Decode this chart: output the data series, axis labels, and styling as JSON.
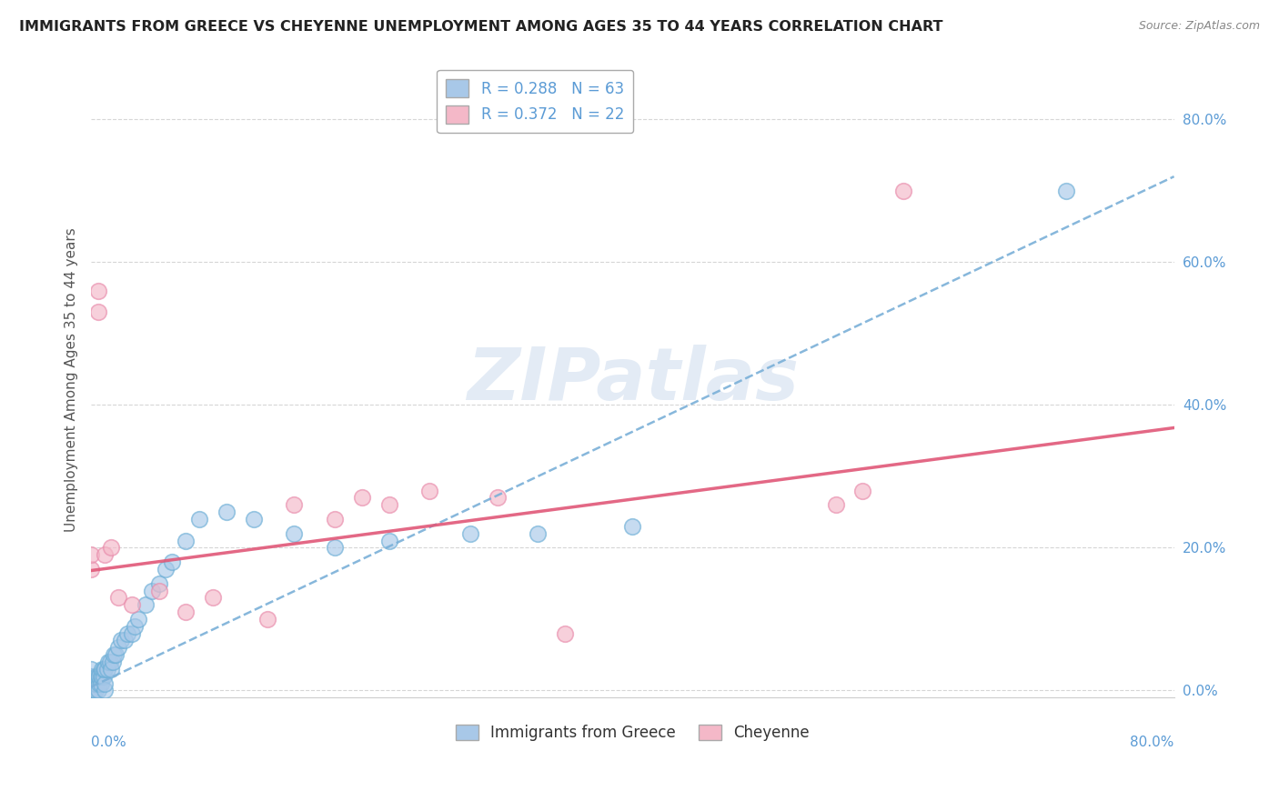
{
  "title": "IMMIGRANTS FROM GREECE VS CHEYENNE UNEMPLOYMENT AMONG AGES 35 TO 44 YEARS CORRELATION CHART",
  "source": "Source: ZipAtlas.com",
  "xlabel_bottom_left": "0.0%",
  "xlabel_bottom_right": "80.0%",
  "ylabel": "Unemployment Among Ages 35 to 44 years",
  "ytick_labels": [
    "0.0%",
    "20.0%",
    "40.0%",
    "60.0%",
    "80.0%"
  ],
  "ytick_values": [
    0.0,
    0.2,
    0.4,
    0.6,
    0.8
  ],
  "xlim": [
    0.0,
    0.8
  ],
  "ylim": [
    -0.01,
    0.88
  ],
  "legend1_label": "R = 0.288   N = 63",
  "legend2_label": "R = 0.372   N = 22",
  "legend_bottom_left": "Immigrants from Greece",
  "legend_bottom_right": "Cheyenne",
  "blue_face_color": "#a8c8e8",
  "blue_edge_color": "#6baed6",
  "pink_face_color": "#f4b8c8",
  "pink_edge_color": "#e88aaa",
  "blue_line_color": "#7ab0d8",
  "pink_line_color": "#e05878",
  "watermark_text": "ZIPatlas",
  "blue_scatter_x": [
    0.0,
    0.0,
    0.0,
    0.0,
    0.0,
    0.0,
    0.0,
    0.0,
    0.0,
    0.0,
    0.0,
    0.0,
    0.001,
    0.001,
    0.002,
    0.002,
    0.003,
    0.003,
    0.004,
    0.004,
    0.005,
    0.005,
    0.006,
    0.006,
    0.007,
    0.007,
    0.008,
    0.008,
    0.009,
    0.009,
    0.01,
    0.01,
    0.01,
    0.012,
    0.013,
    0.014,
    0.015,
    0.016,
    0.017,
    0.018,
    0.02,
    0.022,
    0.025,
    0.027,
    0.03,
    0.032,
    0.035,
    0.04,
    0.045,
    0.05,
    0.055,
    0.06,
    0.07,
    0.08,
    0.1,
    0.12,
    0.15,
    0.18,
    0.22,
    0.28,
    0.33,
    0.4,
    0.72
  ],
  "blue_scatter_y": [
    0.0,
    0.0,
    0.0,
    0.0,
    0.0,
    0.0,
    0.01,
    0.01,
    0.01,
    0.02,
    0.02,
    0.03,
    0.0,
    0.01,
    0.0,
    0.01,
    0.0,
    0.01,
    0.01,
    0.02,
    0.0,
    0.02,
    0.01,
    0.02,
    0.01,
    0.02,
    0.02,
    0.03,
    0.02,
    0.03,
    0.0,
    0.01,
    0.03,
    0.03,
    0.04,
    0.04,
    0.03,
    0.04,
    0.05,
    0.05,
    0.06,
    0.07,
    0.07,
    0.08,
    0.08,
    0.09,
    0.1,
    0.12,
    0.14,
    0.15,
    0.17,
    0.18,
    0.21,
    0.24,
    0.25,
    0.24,
    0.22,
    0.2,
    0.21,
    0.22,
    0.22,
    0.23,
    0.7
  ],
  "pink_scatter_x": [
    0.0,
    0.0,
    0.005,
    0.005,
    0.01,
    0.015,
    0.02,
    0.03,
    0.05,
    0.07,
    0.09,
    0.13,
    0.15,
    0.18,
    0.2,
    0.22,
    0.25,
    0.3,
    0.35,
    0.55,
    0.57,
    0.6
  ],
  "pink_scatter_y": [
    0.17,
    0.19,
    0.56,
    0.53,
    0.19,
    0.2,
    0.13,
    0.12,
    0.14,
    0.11,
    0.13,
    0.1,
    0.26,
    0.24,
    0.27,
    0.26,
    0.28,
    0.27,
    0.08,
    0.26,
    0.28,
    0.7
  ],
  "blue_trend_x": [
    0.0,
    0.8
  ],
  "blue_trend_y": [
    0.005,
    0.72
  ],
  "pink_trend_x": [
    0.0,
    0.8
  ],
  "pink_trend_y": [
    0.168,
    0.368
  ]
}
